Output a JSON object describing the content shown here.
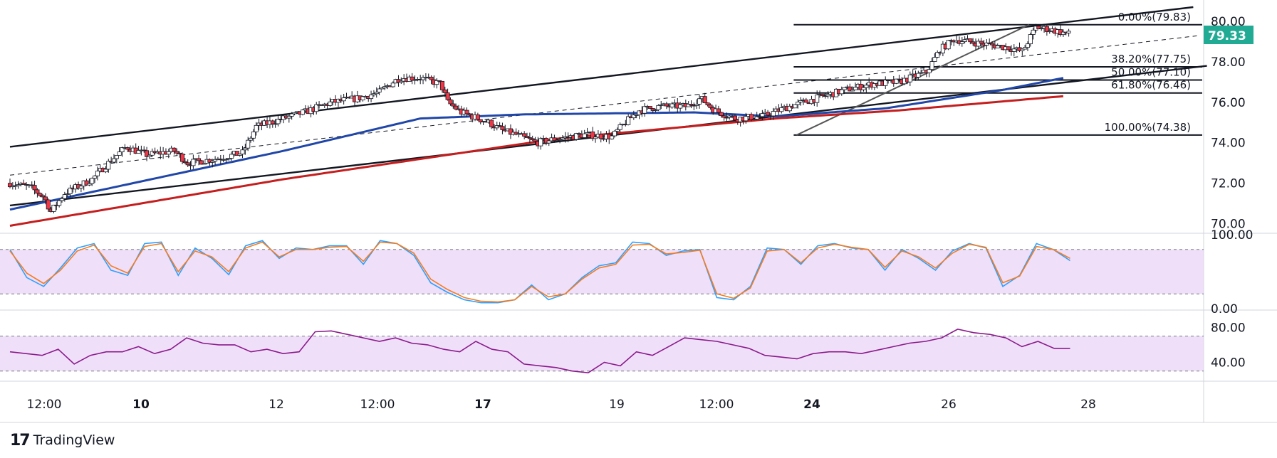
{
  "branding": {
    "logo_mark": "17",
    "name": "TradingView"
  },
  "colors": {
    "candle_up": "#22ab94",
    "candle_down": "#f23645",
    "candle_dark": "#131722",
    "sma_fast": "#2046a8",
    "sma_slow": "#c41e1e",
    "channel": "#131722",
    "price_badge": "#22ab94",
    "stoch_k": "#2ea0ff",
    "stoch_d": "#f57c1f",
    "rsi_line": "#8b1a8b",
    "band_fill": "#e9d4f7"
  },
  "chart_data": [
    {
      "type": "candlestick",
      "title": "",
      "price_axis": {
        "ticks": [
          "80.00",
          "78.00",
          "76.00",
          "74.00",
          "72.00",
          "70.00"
        ],
        "range": [
          69.6,
          80.7
        ]
      },
      "last_price": "79.33",
      "x_tick_labels": [
        {
          "label": "12:00",
          "bold": false
        },
        {
          "label": "10",
          "bold": true
        },
        {
          "label": "12",
          "bold": false
        },
        {
          "label": "12:00",
          "bold": false
        },
        {
          "label": "17",
          "bold": true
        },
        {
          "label": "19",
          "bold": false
        },
        {
          "label": "12:00",
          "bold": false
        },
        {
          "label": "24",
          "bold": true
        },
        {
          "label": "26",
          "bold": false
        },
        {
          "label": "28",
          "bold": false
        }
      ],
      "price_path": [
        [
          0,
          72.0
        ],
        [
          3,
          71.8
        ],
        [
          5,
          71.3
        ],
        [
          6,
          70.6
        ],
        [
          8,
          71.5
        ],
        [
          12,
          72.2
        ],
        [
          15,
          73.2
        ],
        [
          17,
          73.8
        ],
        [
          20,
          73.4
        ],
        [
          24,
          73.6
        ],
        [
          26,
          73.0
        ],
        [
          30,
          73.2
        ],
        [
          34,
          73.5
        ],
        [
          36,
          74.8
        ],
        [
          40,
          75.2
        ],
        [
          43,
          75.5
        ],
        [
          47,
          76.0
        ],
        [
          51,
          76.2
        ],
        [
          54,
          76.5
        ],
        [
          56,
          77.0
        ],
        [
          57,
          77.2
        ],
        [
          60,
          77.2
        ],
        [
          63,
          76.9
        ],
        [
          64,
          76.0
        ],
        [
          66,
          75.5
        ],
        [
          70,
          75.0
        ],
        [
          72,
          74.6
        ],
        [
          74,
          74.4
        ],
        [
          77,
          74.0
        ],
        [
          80,
          74.2
        ],
        [
          84,
          74.4
        ],
        [
          88,
          74.3
        ],
        [
          90,
          75.0
        ],
        [
          92,
          75.6
        ],
        [
          95,
          75.8
        ],
        [
          99,
          75.8
        ],
        [
          101,
          76.2
        ],
        [
          103,
          75.6
        ],
        [
          106,
          75.2
        ],
        [
          110,
          75.3
        ],
        [
          114,
          75.8
        ],
        [
          118,
          76.2
        ],
        [
          122,
          76.6
        ],
        [
          126,
          76.9
        ],
        [
          130,
          77.0
        ],
        [
          134,
          77.5
        ],
        [
          136,
          78.6
        ],
        [
          138,
          79.1
        ],
        [
          142,
          78.9
        ],
        [
          146,
          78.7
        ],
        [
          148,
          78.5
        ],
        [
          150,
          79.7
        ],
        [
          152,
          79.6
        ],
        [
          155,
          79.35
        ]
      ],
      "series": [
        {
          "name": "",
          "kind": "moving-average-fast",
          "points": [
            [
              0,
              70.7
            ],
            [
              40,
              73.6
            ],
            [
              60,
              75.2
            ],
            [
              75,
              75.4
            ],
            [
              100,
              75.5
            ],
            [
              112,
              75.3
            ],
            [
              128,
              75.7
            ],
            [
              145,
              76.6
            ],
            [
              154,
              77.2
            ]
          ]
        },
        {
          "name": "",
          "kind": "moving-average-slow",
          "points": [
            [
              0,
              69.9
            ],
            [
              40,
              72.2
            ],
            [
              80,
              74.2
            ],
            [
              112,
              75.2
            ],
            [
              130,
              75.6
            ],
            [
              154,
              76.3
            ]
          ]
        }
      ],
      "channel": {
        "upper": [
          [
            0,
            73.8
          ],
          [
            173,
            80.7
          ]
        ],
        "lower": [
          [
            0,
            70.9
          ],
          [
            175,
            77.8
          ]
        ],
        "mid_dashed": [
          [
            0,
            72.4
          ],
          [
            174,
            79.3
          ]
        ]
      },
      "fibonacci": {
        "anchor_low": [
          115,
          74.38
        ],
        "anchor_high": [
          149,
          79.83
        ],
        "levels": [
          {
            "label": "0.00%(79.83)",
            "price": 79.83
          },
          {
            "label": "38.20%(77.75)",
            "price": 77.75
          },
          {
            "label": "50.00%(77.10)",
            "price": 77.1
          },
          {
            "label": "61.80%(76.46)",
            "price": 76.46
          },
          {
            "label": "100.00%(74.38)",
            "price": 74.38
          }
        ]
      }
    },
    {
      "type": "line",
      "title": "",
      "axis_ticks": [
        "100.00",
        "0.00"
      ],
      "range": [
        0,
        100
      ],
      "band": [
        20,
        80
      ],
      "series": [
        {
          "name": "",
          "values": [
            80,
            42,
            30,
            55,
            82,
            88,
            52,
            45,
            88,
            90,
            45,
            82,
            68,
            46,
            85,
            92,
            68,
            82,
            80,
            85,
            85,
            60,
            92,
            88,
            72,
            35,
            22,
            12,
            8,
            8,
            12,
            32,
            12,
            20,
            42,
            58,
            62,
            90,
            88,
            72,
            78,
            80,
            15,
            12,
            30,
            82,
            80,
            60,
            85,
            88,
            82,
            80,
            52,
            80,
            68,
            52,
            78,
            88,
            82,
            30,
            45,
            88,
            80,
            65
          ]
        },
        {
          "name": "",
          "values": [
            78,
            48,
            34,
            52,
            78,
            86,
            58,
            48,
            84,
            88,
            50,
            78,
            70,
            50,
            82,
            90,
            70,
            80,
            80,
            83,
            84,
            64,
            90,
            88,
            75,
            40,
            26,
            15,
            10,
            9,
            12,
            30,
            16,
            20,
            40,
            55,
            60,
            86,
            87,
            74,
            76,
            79,
            20,
            14,
            28,
            78,
            80,
            62,
            82,
            87,
            83,
            80,
            56,
            78,
            70,
            55,
            75,
            87,
            83,
            35,
            44,
            84,
            80,
            68
          ]
        }
      ]
    },
    {
      "type": "line",
      "title": "",
      "axis_ticks": [
        "80.00",
        "40.00"
      ],
      "range": [
        20,
        95
      ],
      "band": [
        30,
        70
      ],
      "series": [
        {
          "name": "",
          "values": [
            52,
            50,
            48,
            55,
            38,
            48,
            52,
            52,
            58,
            50,
            55,
            68,
            62,
            60,
            60,
            52,
            55,
            50,
            52,
            75,
            76,
            72,
            68,
            64,
            68,
            62,
            60,
            55,
            52,
            64,
            55,
            52,
            38,
            36,
            34,
            30,
            28,
            40,
            36,
            52,
            48,
            58,
            68,
            66,
            64,
            60,
            56,
            48,
            46,
            44,
            50,
            52,
            52,
            50,
            54,
            58,
            62,
            64,
            68,
            78,
            74,
            72,
            68,
            58,
            64,
            56,
            56
          ]
        }
      ]
    }
  ]
}
